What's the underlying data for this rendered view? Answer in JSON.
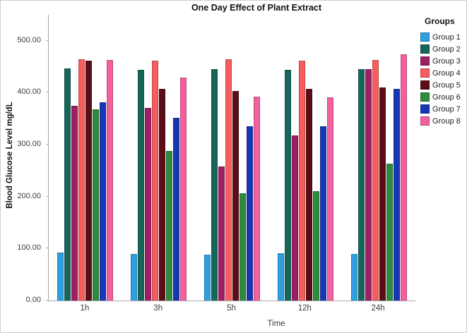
{
  "chart_data": {
    "type": "bar",
    "title": "One Day Effect of Plant Extract",
    "xlabel": "Time",
    "ylabel": "Blood Glucose Level mg/dL",
    "categories": [
      "1h",
      "3h",
      "5h",
      "12h",
      "24h"
    ],
    "series": [
      {
        "name": "Group 1",
        "color": "#2F9FE0",
        "values": [
          93,
          90,
          88,
          91,
          90
        ]
      },
      {
        "name": "Group 2",
        "color": "#17665C",
        "values": [
          447,
          444,
          446,
          444,
          445
        ]
      },
      {
        "name": "Group 3",
        "color": "#9E2063",
        "values": [
          375,
          371,
          258,
          318,
          446
        ]
      },
      {
        "name": "Group 4",
        "color": "#F75D5D",
        "values": [
          465,
          462,
          464,
          462,
          463
        ]
      },
      {
        "name": "Group 5",
        "color": "#5A0E18",
        "values": [
          462,
          407,
          404,
          408,
          410
        ]
      },
      {
        "name": "Group 6",
        "color": "#2E8B3D",
        "values": [
          368,
          288,
          207,
          211,
          263
        ]
      },
      {
        "name": "Group 7",
        "color": "#1936B4",
        "values": [
          381,
          352,
          336,
          336,
          408
        ]
      },
      {
        "name": "Group 8",
        "color": "#F2609E",
        "values": [
          463,
          429,
          393,
          391,
          474
        ]
      }
    ],
    "ylim": [
      0,
      550
    ],
    "yticks": [
      {
        "value": 0,
        "label": "0.00"
      },
      {
        "value": 100,
        "label": "100.00"
      },
      {
        "value": 200,
        "label": "200.00"
      },
      {
        "value": 300,
        "label": "300.00"
      },
      {
        "value": 400,
        "label": "400.00"
      },
      {
        "value": 500,
        "label": "500.00"
      }
    ],
    "grid": false,
    "legend": {
      "title": "Groups",
      "position": "right"
    }
  },
  "colors": {
    "axis_line": "#a8a8a8",
    "tick_text": "#3b3b3b",
    "frame_border": "#cfcfcf"
  }
}
